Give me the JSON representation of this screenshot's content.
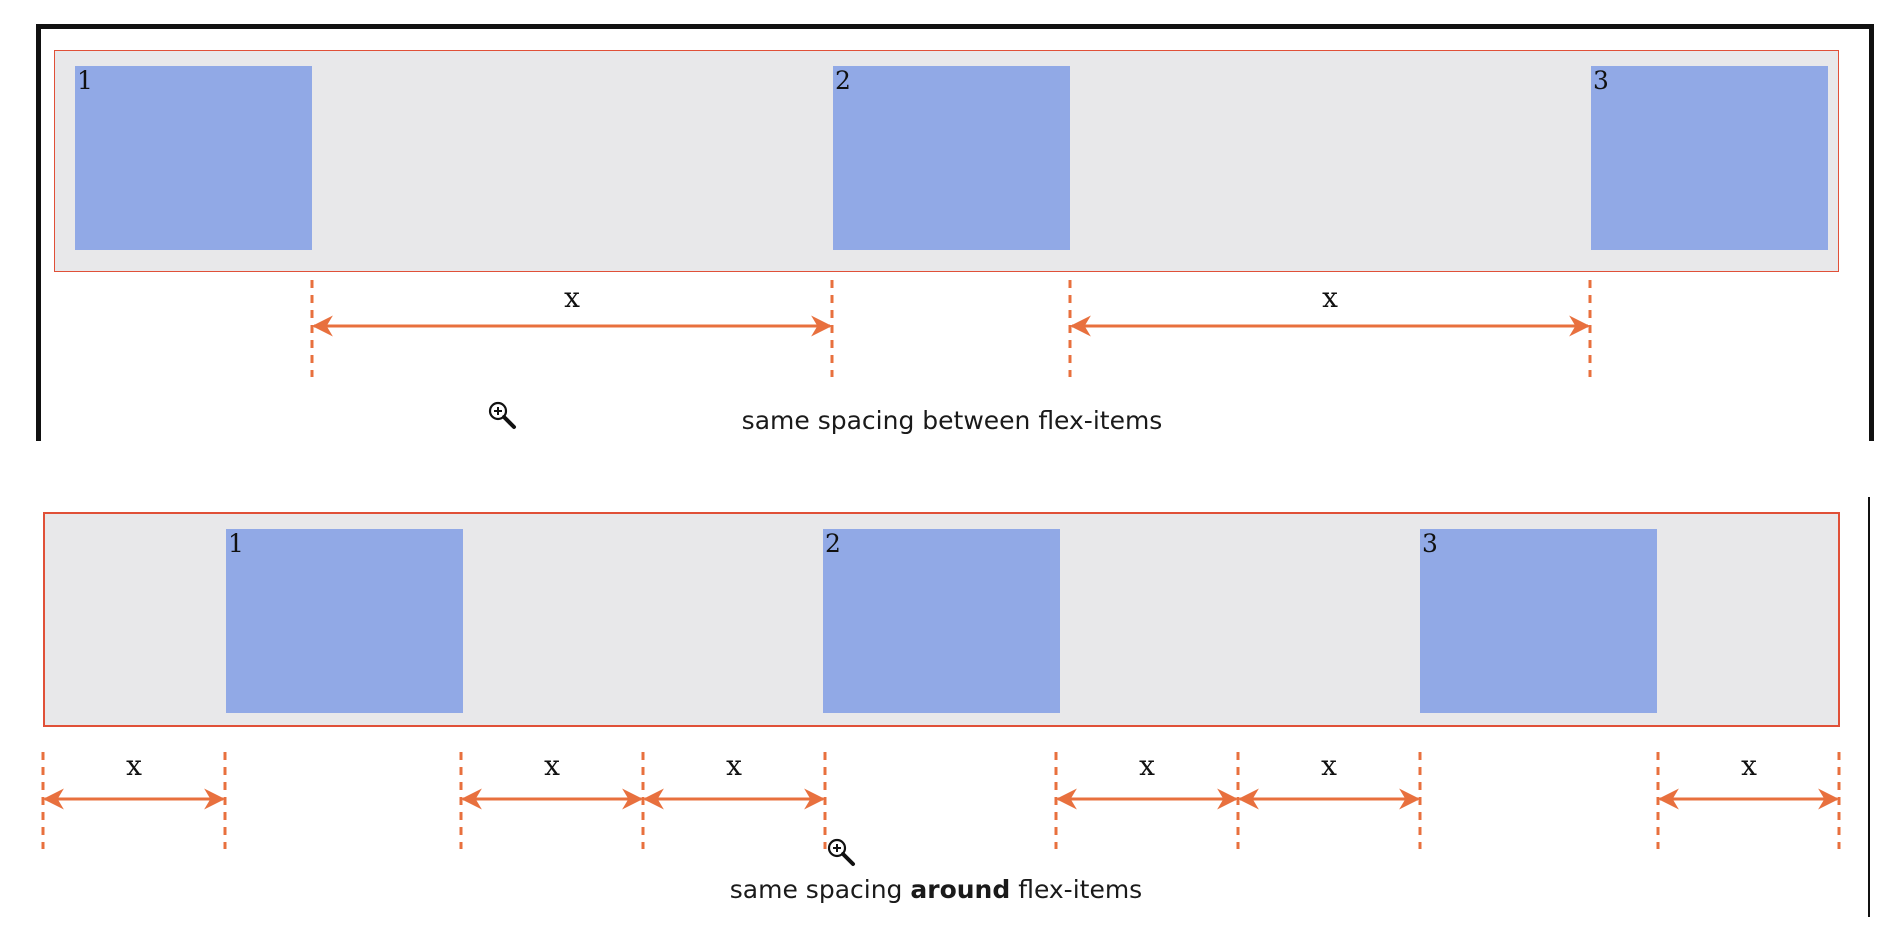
{
  "panels": [
    {
      "id": "between",
      "caption_before": "same spacing between flex-items",
      "caption_bold": "",
      "caption_after": "",
      "items": [
        "1",
        "2",
        "3"
      ],
      "spacing_label": "x"
    },
    {
      "id": "around",
      "caption_before": "same spacing ",
      "caption_bold": "around",
      "caption_after": " flex-items",
      "items": [
        "1",
        "2",
        "3"
      ],
      "spacing_label": "x"
    }
  ],
  "colors": {
    "container_bg": "#e8e8ea",
    "container_border": "#e05038",
    "item_fill": "#91a9e6",
    "arrow": "#e8703e"
  },
  "icons": [
    "zoom-in-cursor-icon"
  ]
}
